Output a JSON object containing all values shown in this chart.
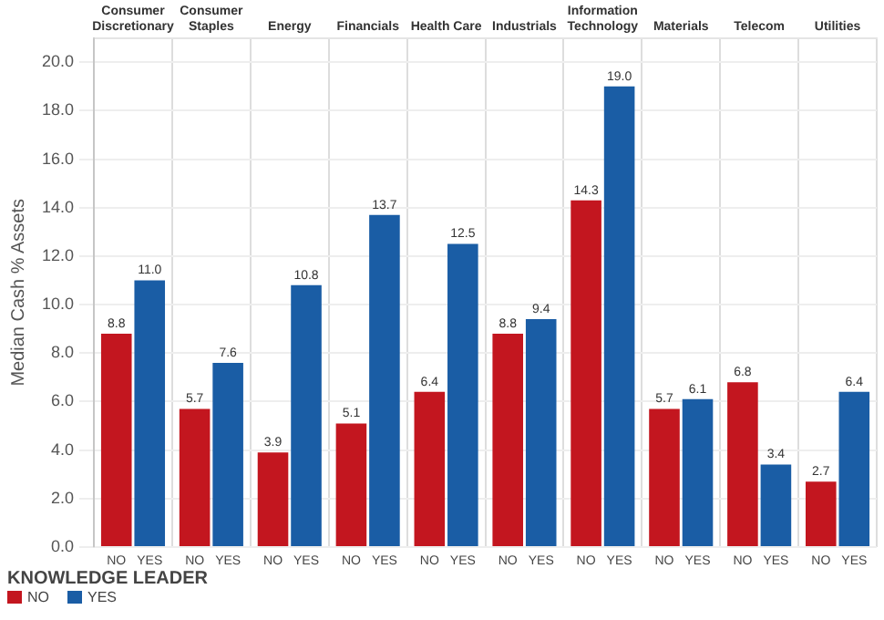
{
  "chart_data": {
    "type": "bar",
    "ylabel": "Median Cash % Assets",
    "legend_title": "KNOWLEDGE LEADER",
    "categories": [
      "Consumer Discretionary",
      "Consumer Staples",
      "Energy",
      "Financials",
      "Health Care",
      "Industrials",
      "Information Technology",
      "Materials",
      "Telecom",
      "Utilities"
    ],
    "series": [
      {
        "name": "NO",
        "color": "#c3161f",
        "values": [
          8.8,
          5.7,
          3.9,
          5.1,
          6.4,
          8.8,
          14.3,
          5.7,
          6.8,
          2.7
        ],
        "value_labels": [
          "8.8",
          "5.7",
          "3.9",
          "5.1",
          "6.4",
          "8.8",
          "14.3",
          "5.7",
          "6.8",
          "2.7"
        ]
      },
      {
        "name": "YES",
        "color": "#1a5da5",
        "values": [
          11.0,
          7.6,
          10.8,
          13.7,
          12.5,
          9.4,
          19.0,
          6.1,
          3.4,
          6.4
        ],
        "value_labels": [
          "11.0",
          "7.6",
          "10.8",
          "13.7",
          "12.5",
          "9.4",
          "19.0",
          "6.1",
          "3.4",
          "6.4"
        ]
      }
    ],
    "ylim": [
      0,
      21
    ],
    "yticks": [
      {
        "value": 0,
        "label": "0.0"
      },
      {
        "value": 2,
        "label": "2.0"
      },
      {
        "value": 4,
        "label": "4.0"
      },
      {
        "value": 6,
        "label": "6.0"
      },
      {
        "value": 8,
        "label": "8.0"
      },
      {
        "value": 10,
        "label": "10.0"
      },
      {
        "value": 12,
        "label": "12.0"
      },
      {
        "value": 14,
        "label": "14.0"
      },
      {
        "value": 16,
        "label": "16.0"
      },
      {
        "value": 18,
        "label": "18.0"
      },
      {
        "value": 20,
        "label": "20.0"
      }
    ],
    "grid": true,
    "legend": "bottom left"
  }
}
